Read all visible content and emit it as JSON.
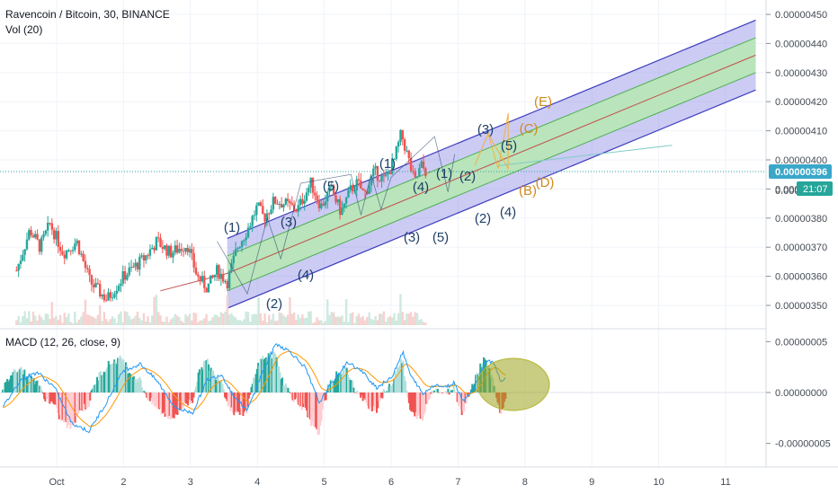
{
  "header": {
    "symbol_line": "Ravencoin / Bitcoin, 30, BINANCE",
    "volume_label": "Vol (20)",
    "macd_label": "MACD (12, 26, close, 9)"
  },
  "price_axis": {
    "ticks": [
      "0.00000450",
      "0.00000440",
      "0.00000430",
      "0.00000420",
      "0.00000410",
      "0.00000400",
      "0.00000390",
      "0.00000380",
      "0.00000370",
      "0.00000360",
      "0.00000350"
    ],
    "current_price": "0.00000396",
    "countdown": "21:07",
    "partial_tick": "0.0000"
  },
  "macd_axis": {
    "ticks": [
      "0.00000005",
      "0.00000000",
      "-0.00000005"
    ]
  },
  "time_axis": {
    "ticks": [
      "Oct",
      "2",
      "3",
      "4",
      "5",
      "6",
      "7",
      "8",
      "9",
      "10",
      "11"
    ]
  },
  "wave_labels": {
    "blue": [
      "(1)",
      "(2)",
      "(3)",
      "(4)",
      "(5)",
      "(1)",
      "(2)",
      "(3)",
      "(4)",
      "(5)",
      "(1)",
      "(2)",
      "(3)",
      "(4)",
      "(5)"
    ],
    "orange": [
      "(E)",
      "(C)",
      "(B)",
      "(D)"
    ]
  },
  "colors": {
    "up": "#26a69a",
    "down": "#ef5350",
    "channel_outer": "#3f3fbf",
    "channel_fill": "#8c8ce6",
    "channel_inner_fill": "#b7e9b0",
    "median_line": "#c0504d",
    "wave_blue": "#1e3f66",
    "wave_orange": "#d08a1e",
    "macd_line": "#2196f3",
    "signal_line": "#ff9800",
    "highlight_ellipse": "#9aa41e",
    "price_tag": "#3aa7c9",
    "countdown_tag": "#26a69a"
  },
  "chart_data": {
    "type": "candlestick",
    "title": "Ravencoin / Bitcoin, 30, BINANCE",
    "price_range": [
      3.45e-06,
      4.52e-06
    ],
    "macd_range": [
      -7e-08,
      5.5e-08
    ],
    "x_ticks": [
      "Oct",
      "2",
      "3",
      "4",
      "5",
      "6",
      "7",
      "8",
      "9",
      "10",
      "11"
    ],
    "last_price": 3.96e-06,
    "price_path": [
      [
        0.0,
        3.62e-06
      ],
      [
        0.2,
        3.76e-06
      ],
      [
        0.35,
        3.7e-06
      ],
      [
        0.5,
        3.78e-06
      ],
      [
        0.7,
        3.68e-06
      ],
      [
        0.9,
        3.72e-06
      ],
      [
        1.1,
        3.58e-06
      ],
      [
        1.35,
        3.52e-06
      ],
      [
        1.6,
        3.6e-06
      ],
      [
        1.9,
        3.66e-06
      ],
      [
        2.1,
        3.72e-06
      ],
      [
        2.3,
        3.68e-06
      ],
      [
        2.55,
        3.71e-06
      ],
      [
        2.7,
        3.6e-06
      ],
      [
        2.85,
        3.56e-06
      ],
      [
        3.0,
        3.62e-06
      ],
      [
        3.15,
        3.58e-06
      ],
      [
        3.3,
        3.7e-06
      ],
      [
        3.45,
        3.76e-06
      ],
      [
        3.6,
        3.84e-06
      ],
      [
        3.7,
        3.8e-06
      ],
      [
        3.85,
        3.86e-06
      ],
      [
        4.0,
        3.85e-06
      ],
      [
        4.2,
        3.83e-06
      ],
      [
        4.4,
        3.92e-06
      ],
      [
        4.55,
        3.84e-06
      ],
      [
        4.7,
        3.9e-06
      ],
      [
        4.85,
        3.82e-06
      ],
      [
        5.0,
        3.9e-06
      ],
      [
        5.1,
        3.92e-06
      ],
      [
        5.2,
        3.88e-06
      ],
      [
        5.35,
        3.96e-06
      ],
      [
        5.5,
        3.93e-06
      ],
      [
        5.65,
        4e-06
      ],
      [
        5.75,
        4.09e-06
      ],
      [
        5.85,
        4.01e-06
      ],
      [
        5.95,
        3.92e-06
      ],
      [
        6.05,
        3.98e-06
      ],
      [
        6.12,
        3.96e-06
      ]
    ],
    "channel": {
      "x_range": [
        3.55,
        11.45
      ],
      "upper": [
        3.73e-06,
        4.48e-06
      ],
      "inner_upper": [
        3.67e-06,
        4.42e-06
      ],
      "median": [
        3.61e-06,
        4.36e-06
      ],
      "inner_lower": [
        3.55e-06,
        4.3e-06
      ],
      "lower": [
        3.49e-06,
        4.24e-06
      ]
    },
    "macd_path": [
      [
        0.0,
        -1.5e-08
      ],
      [
        0.3,
        1.2e-08
      ],
      [
        0.6,
        2e-08
      ],
      [
        0.9,
        5e-09
      ],
      [
        1.2,
        -3e-08
      ],
      [
        1.5,
        -3.8e-08
      ],
      [
        1.8,
        -1e-08
      ],
      [
        2.1,
        2.2e-08
      ],
      [
        2.4,
        2.8e-08
      ],
      [
        2.7,
        1e-08
      ],
      [
        3.0,
        -1.5e-08
      ],
      [
        3.3,
        -2e-08
      ],
      [
        3.55,
        1.2e-08
      ],
      [
        3.8,
        1.8e-08
      ],
      [
        4.0,
        -2e-09
      ],
      [
        4.25,
        -1.8e-08
      ],
      [
        4.5,
        1.8e-08
      ],
      [
        4.75,
        4.8e-08
      ],
      [
        5.0,
        4e-08
      ],
      [
        5.25,
        2.5e-08
      ],
      [
        5.5,
        -1e-08
      ],
      [
        5.75,
        1.2e-08
      ],
      [
        6.0,
        3e-08
      ],
      [
        6.25,
        2e-08
      ],
      [
        6.5,
        5e-09
      ],
      [
        6.75,
        1.4e-08
      ],
      [
        6.95,
        4e-08
      ],
      [
        7.1,
        1.5e-08
      ],
      [
        7.2,
        8e-09
      ],
      [
        7.3,
        -2e-09
      ],
      [
        7.5,
        8e-09
      ],
      [
        7.7,
        5e-09
      ],
      [
        7.85,
        1e-08
      ],
      [
        8.0,
        -8e-09
      ],
      [
        8.2,
        5e-09
      ],
      [
        8.4,
        3.2e-08
      ],
      [
        8.55,
        2.8e-08
      ],
      [
        8.65,
        1e-08
      ],
      [
        8.75,
        1.5e-08
      ]
    ]
  }
}
